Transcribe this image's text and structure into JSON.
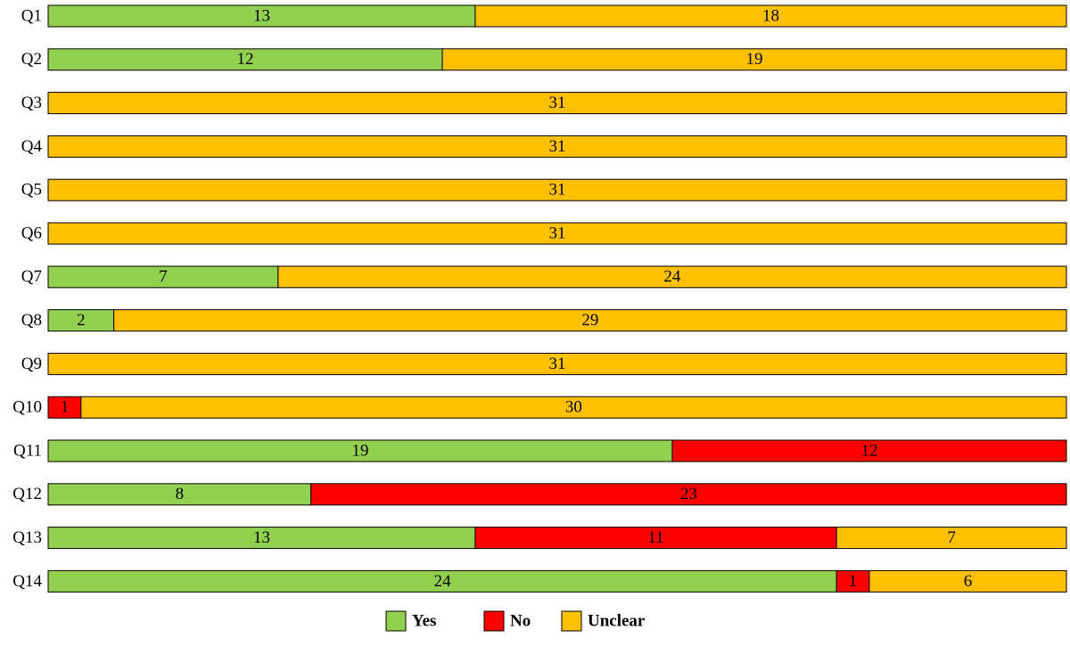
{
  "chart_data": {
    "type": "bar",
    "orientation": "horizontal",
    "stacked": true,
    "categories": [
      "Q1",
      "Q2",
      "Q3",
      "Q4",
      "Q5",
      "Q6",
      "Q7",
      "Q8",
      "Q9",
      "Q10",
      "Q11",
      "Q12",
      "Q13",
      "Q14"
    ],
    "series": [
      {
        "name": "Yes",
        "color": "#92D050",
        "values": [
          13,
          12,
          0,
          0,
          0,
          0,
          7,
          2,
          0,
          0,
          19,
          8,
          13,
          24
        ]
      },
      {
        "name": "No",
        "color": "#FF0000",
        "values": [
          0,
          0,
          0,
          0,
          0,
          0,
          0,
          0,
          0,
          1,
          12,
          23,
          11,
          1
        ]
      },
      {
        "name": "Unclear",
        "color": "#FFC000",
        "values": [
          18,
          19,
          31,
          31,
          31,
          31,
          24,
          29,
          31,
          30,
          0,
          0,
          7,
          6
        ]
      }
    ],
    "xlim": [
      0,
      31
    ],
    "title": "",
    "xlabel": "",
    "ylabel": "",
    "grid": false,
    "legend_position": "bottom-center",
    "data_labels": true
  }
}
